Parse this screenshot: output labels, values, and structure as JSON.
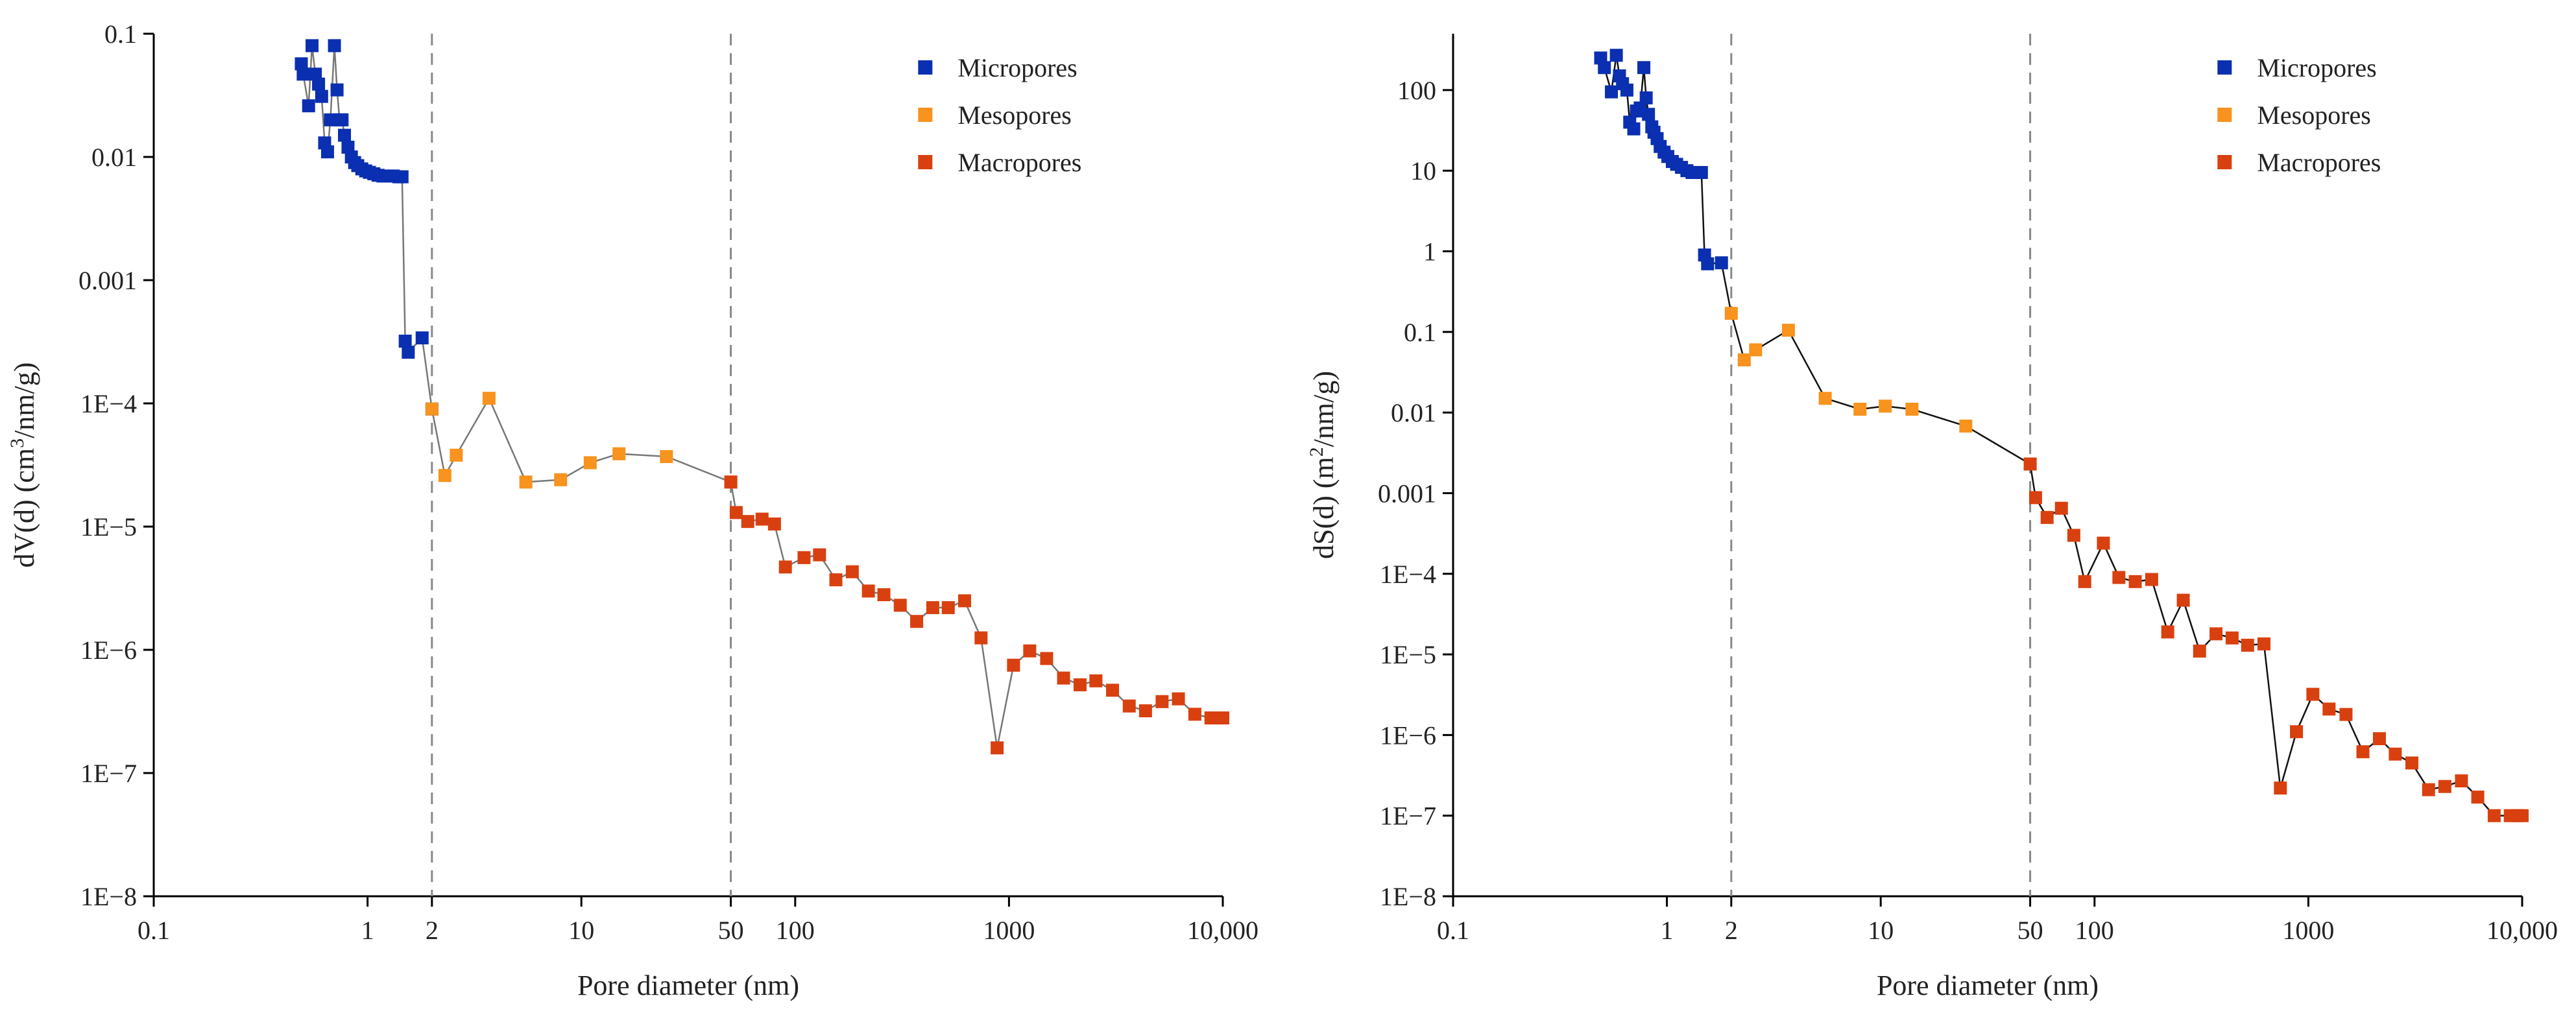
{
  "chart_data": [
    {
      "type": "scatter",
      "id": "left",
      "x_scale": "log",
      "y_scale": "log",
      "xlim": [
        0.1,
        10000
      ],
      "ylim": [
        1e-08,
        0.1
      ],
      "xlabel": "Pore diameter (nm)",
      "ylabel_main": "dV(d) (cm",
      "ylabel_sup": "3",
      "ylabel_tail": "/nm/g)",
      "x_ticks": [
        0.1,
        1,
        2,
        10,
        50,
        100,
        1000,
        10000
      ],
      "x_tick_labels": [
        "0.1",
        "1",
        "2",
        "10",
        "50",
        "100",
        "1000",
        "10,000"
      ],
      "y_ticks": [
        1e-08,
        1e-07,
        1e-06,
        1e-05,
        0.0001,
        0.001,
        0.01,
        0.1
      ],
      "y_tick_labels": [
        "1E−8",
        "1E−7",
        "1E−6",
        "1E−5",
        "1E−4",
        "0.001",
        "0.01",
        "0.1"
      ],
      "vlines": [
        2,
        50
      ],
      "line_color": "#777777",
      "legend": [
        "Micropores",
        "Mesopores",
        "Macropores"
      ],
      "series": [
        {
          "name": "Micropores",
          "color": "#0a2fb0",
          "x": [
            0.49,
            0.5,
            0.53,
            0.55,
            0.57,
            0.59,
            0.61,
            0.63,
            0.65,
            0.67,
            0.7,
            0.72,
            0.74,
            0.76,
            0.78,
            0.81,
            0.84,
            0.87,
            0.9,
            0.94,
            0.98,
            1.02,
            1.07,
            1.12,
            1.18,
            1.25,
            1.32,
            1.4,
            1.45,
            1.5,
            1.55,
            1.8,
            2.0
          ],
          "y": [
            0.057,
            0.047,
            0.026,
            0.08,
            0.047,
            0.039,
            0.031,
            0.013,
            0.011,
            0.02,
            0.08,
            0.035,
            0.02,
            0.02,
            0.015,
            0.012,
            0.01,
            0.009,
            0.0085,
            0.008,
            0.0077,
            0.0075,
            0.0073,
            0.0071,
            0.007,
            0.007,
            0.007,
            0.0069,
            0.0069,
            0.00032,
            0.00026,
            0.00034,
            9e-05
          ]
        },
        {
          "name": "Mesopores",
          "color": "#f7931e",
          "x": [
            2.0,
            2.3,
            2.6,
            3.7,
            5.5,
            8,
            11,
            15,
            25,
            50
          ],
          "y": [
            9e-05,
            2.6e-05,
            3.8e-05,
            0.00011,
            2.3e-05,
            2.4e-05,
            3.3e-05,
            3.9e-05,
            3.7e-05,
            2.3e-05
          ]
        },
        {
          "name": "Macropores",
          "color": "#d9400f",
          "x": [
            50,
            53,
            60,
            70,
            80,
            90,
            110,
            130,
            155,
            185,
            220,
            260,
            310,
            370,
            440,
            520,
            620,
            740,
            880,
            1050,
            1250,
            1500,
            1800,
            2150,
            2550,
            3050,
            3650,
            4350,
            5200,
            6200,
            7400,
            8800,
            9500,
            10000
          ],
          "y": [
            2.3e-05,
            1.3e-05,
            1.1e-05,
            1.15e-05,
            1.05e-05,
            4.7e-06,
            5.6e-06,
            5.9e-06,
            3.7e-06,
            4.3e-06,
            3e-06,
            2.8e-06,
            2.3e-06,
            1.7e-06,
            2.2e-06,
            2.2e-06,
            2.5e-06,
            1.25e-06,
            1.6e-07,
            7.5e-07,
            9.8e-07,
            8.5e-07,
            5.9e-07,
            5.2e-07,
            5.6e-07,
            4.7e-07,
            3.5e-07,
            3.2e-07,
            3.8e-07,
            4e-07,
            3e-07,
            2.8e-07,
            2.8e-07,
            2.8e-07
          ]
        }
      ]
    },
    {
      "type": "scatter",
      "id": "right",
      "x_scale": "log",
      "y_scale": "log",
      "xlim": [
        0.1,
        10000
      ],
      "ylim": [
        1e-08,
        500
      ],
      "xlabel": "Pore diameter (nm)",
      "ylabel_main": "dS(d) (m",
      "ylabel_sup": "2",
      "ylabel_tail": "/nm/g)",
      "x_ticks": [
        0.1,
        1,
        2,
        10,
        50,
        100,
        1000,
        10000
      ],
      "x_tick_labels": [
        "0.1",
        "1",
        "2",
        "10",
        "50",
        "100",
        "1000",
        "10,000"
      ],
      "y_ticks": [
        1e-08,
        1e-07,
        1e-06,
        1e-05,
        0.0001,
        0.001,
        0.01,
        0.1,
        1,
        10,
        100
      ],
      "y_tick_labels": [
        "1E−8",
        "1E−7",
        "1E−6",
        "1E−5",
        "1E−4",
        "0.001",
        "0.01",
        "0.1",
        "1",
        "10",
        "100"
      ],
      "vlines": [
        2,
        50
      ],
      "line_color": "#111111",
      "legend": [
        "Micropores",
        "Mesopores",
        "Macropores"
      ],
      "series": [
        {
          "name": "Micropores",
          "color": "#0a2fb0",
          "x": [
            0.49,
            0.51,
            0.55,
            0.58,
            0.6,
            0.62,
            0.65,
            0.67,
            0.7,
            0.72,
            0.75,
            0.78,
            0.8,
            0.82,
            0.85,
            0.87,
            0.9,
            0.93,
            0.97,
            1.01,
            1.06,
            1.11,
            1.17,
            1.24,
            1.31,
            1.38,
            1.45,
            1.5,
            1.55,
            1.8
          ],
          "y": [
            250,
            190,
            95,
            270,
            150,
            120,
            100,
            40,
            33,
            55,
            60,
            190,
            80,
            50,
            35,
            30,
            25,
            20,
            17,
            15,
            13,
            12,
            11,
            10,
            9.5,
            9.5,
            9.5,
            0.9,
            0.7,
            0.72
          ]
        },
        {
          "name": "Mesopores",
          "color": "#f7931e",
          "x": [
            2.0,
            2.3,
            2.6,
            3.7,
            5.5,
            8,
            10.5,
            14,
            25,
            50
          ],
          "y": [
            0.17,
            0.045,
            0.06,
            0.105,
            0.015,
            0.011,
            0.012,
            0.011,
            0.0068,
            0.0023
          ]
        },
        {
          "name": "Macropores",
          "color": "#d9400f",
          "x": [
            50,
            53,
            60,
            70,
            80,
            90,
            110,
            130,
            155,
            185,
            220,
            260,
            310,
            370,
            440,
            520,
            620,
            740,
            880,
            1050,
            1250,
            1500,
            1800,
            2150,
            2550,
            3050,
            3650,
            4350,
            5200,
            6200,
            7400,
            8800,
            9500,
            10000
          ],
          "y": [
            0.0023,
            0.00088,
            0.0005,
            0.00065,
            0.0003,
            8e-05,
            0.00024,
            9e-05,
            8e-05,
            8.5e-05,
            1.9e-05,
            4.7e-05,
            1.1e-05,
            1.8e-05,
            1.6e-05,
            1.3e-05,
            1.35e-05,
            2.2e-07,
            1.1e-06,
            3.2e-06,
            2.1e-06,
            1.8e-06,
            6.2e-07,
            9e-07,
            5.8e-07,
            4.5e-07,
            2.1e-07,
            2.3e-07,
            2.7e-07,
            1.7e-07,
            1e-07,
            1e-07,
            1e-07,
            1e-07
          ]
        }
      ]
    }
  ]
}
